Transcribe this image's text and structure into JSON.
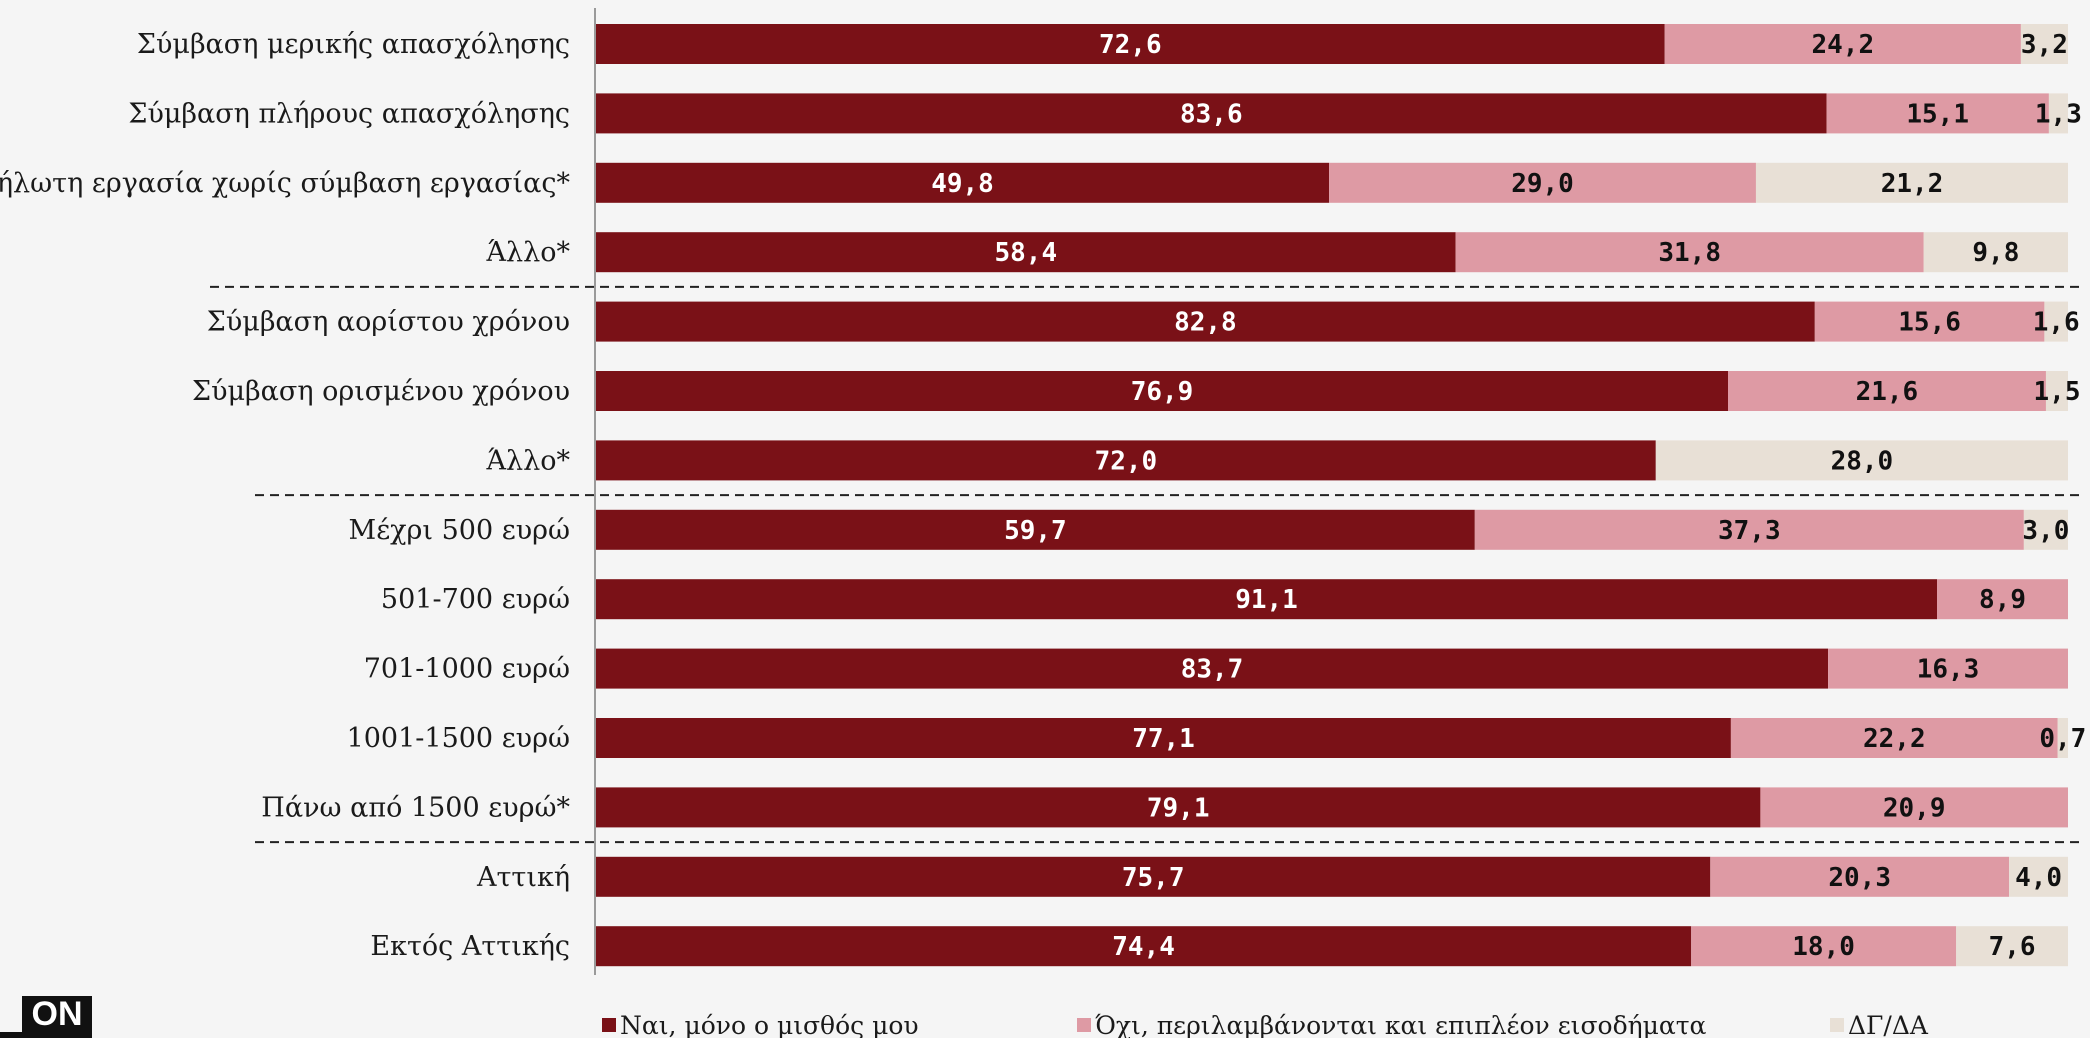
{
  "colors": {
    "yes": "#7a1117",
    "no": "#de9aa4",
    "dk": "#e8e0d6",
    "text_dark": "#111111",
    "text_light": "#ffffff"
  },
  "logo": {
    "text": "ON"
  },
  "chart_data": {
    "type": "bar",
    "orientation": "horizontal",
    "stacked": true,
    "xlim": [
      0,
      100
    ],
    "categories": [
      "Σύμβαση μερικής απασχόλησης",
      "Σύμβαση πλήρους απασχόλησης",
      "Αδήλωτη εργασία χωρίς σύμβαση εργασίας*",
      "Άλλο*",
      "Σύμβαση αορίστου χρόνου",
      "Σύμβαση ορισμένου χρόνου",
      "Άλλο*",
      "Μέχρι 500 ευρώ",
      "501-700 ευρώ",
      "701-1000 ευρώ",
      "1001-1500 ευρώ",
      "Πάνω από 1500 ευρώ*",
      "Αττική",
      "Εκτός Αττικής"
    ],
    "group_separators_after": [
      3,
      6,
      11
    ],
    "series": [
      {
        "name": "Ναι, μόνο ο μισθός μου",
        "color_key": "yes",
        "values": [
          72.6,
          83.6,
          49.8,
          58.4,
          82.8,
          76.9,
          72.0,
          59.7,
          91.1,
          83.7,
          77.1,
          79.1,
          75.7,
          74.4
        ],
        "labels": [
          "72,6",
          "83,6",
          "49,8",
          "58,4",
          "82,8",
          "76,9",
          "72,0",
          "59,7",
          "91,1",
          "83,7",
          "77,1",
          "79,1",
          "75,7",
          "74,4"
        ]
      },
      {
        "name": "Όχι, περιλαμβάνονται και επιπλέον εισοδήματα",
        "color_key": "no",
        "values": [
          24.2,
          15.1,
          29.0,
          31.8,
          15.6,
          21.6,
          0,
          37.3,
          8.9,
          16.3,
          22.2,
          20.9,
          20.3,
          18.0
        ],
        "labels": [
          "24,2",
          "15,1",
          "29,0",
          "31,8",
          "15,6",
          "21,6",
          "",
          "37,3",
          "8,9",
          "16,3",
          "22,2",
          "20,9",
          "20,3",
          "18,0"
        ]
      },
      {
        "name": "ΔΓ/ΔΑ",
        "color_key": "dk",
        "values": [
          3.2,
          1.3,
          21.2,
          9.8,
          1.6,
          1.5,
          28.0,
          3.0,
          0,
          0,
          0.7,
          0,
          4.0,
          7.6
        ],
        "labels": [
          "3,2",
          "1,3",
          "21,2",
          "9,8",
          "1,6",
          "1,5",
          "28,0",
          "3,0",
          "",
          "",
          "0,7",
          "",
          "4,0",
          "7,6"
        ]
      }
    ],
    "legend_position": "bottom"
  }
}
